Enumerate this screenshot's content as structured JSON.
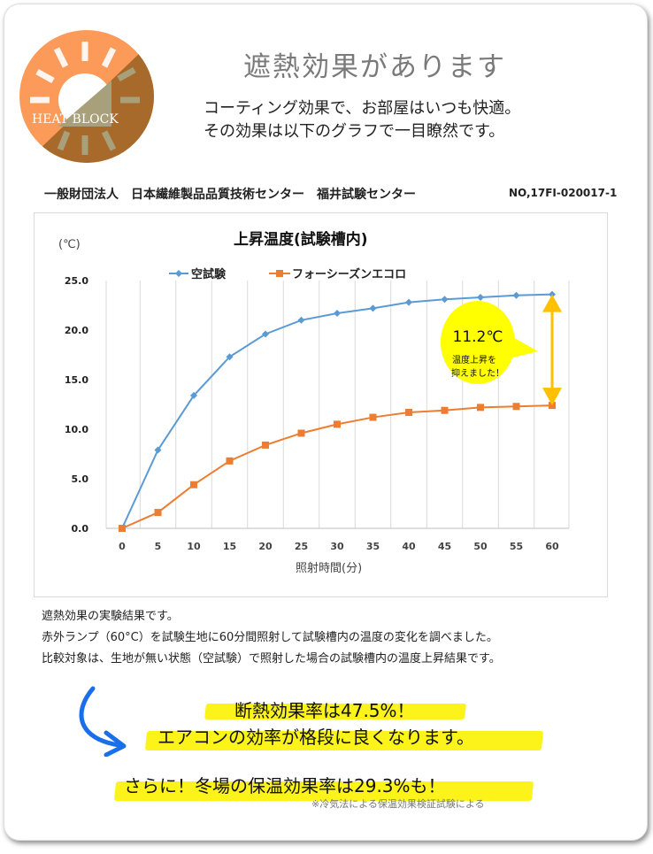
{
  "logo": {
    "text": "HEAT BLOCK",
    "colors": {
      "orange": "#fb9a59",
      "brown": "#a86a2a"
    }
  },
  "header": {
    "title": "遮熱効果があります",
    "lead": [
      "コーティング効果で、お部屋はいつも快適。",
      "その効果は以下のグラフで一目瞭然です。"
    ]
  },
  "org": {
    "name": "一般財団法人　日本繊維製品品質技術センター　福井試験センター",
    "number": "NO,17FI-020017-1"
  },
  "chart_data": {
    "type": "line",
    "title": "上昇温度(試験槽内)",
    "ylabel": "(℃)",
    "xlabel": "照射時間(分)",
    "x": [
      0,
      5,
      10,
      15,
      20,
      25,
      30,
      35,
      40,
      45,
      50,
      55,
      60
    ],
    "ylim": [
      0,
      25
    ],
    "yticks": [
      "0.0",
      "5.0",
      "10.0",
      "15.0",
      "20.0",
      "25.0"
    ],
    "xticks": [
      "0",
      "5",
      "10",
      "15",
      "20",
      "25",
      "30",
      "35",
      "40",
      "45",
      "50",
      "55",
      "60"
    ],
    "grid": "vertical",
    "legend": "top",
    "series": [
      {
        "name": "空試験",
        "color": "#5b9bd5",
        "marker": "diamond",
        "values": [
          0,
          7.9,
          13.4,
          17.3,
          19.6,
          21.0,
          21.7,
          22.2,
          22.8,
          23.1,
          23.3,
          23.5,
          23.6
        ]
      },
      {
        "name": "フォーシーズンエコロ",
        "color": "#ed7d31",
        "marker": "square",
        "values": [
          0,
          1.6,
          4.4,
          6.8,
          8.4,
          9.6,
          10.5,
          11.2,
          11.7,
          11.9,
          12.2,
          12.3,
          12.4
        ]
      }
    ],
    "annotation": {
      "value": "11.2℃",
      "line1": "温度上昇を",
      "line2": "抑えました！",
      "bubble_color": "#ffff00",
      "arrow_color": "#ffc000"
    }
  },
  "notes": [
    "遮熱効果の実験結果です。",
    "赤外ランプ（60°C）を試験生地に60分間照射して試験槽内の温度の変化を調べました。",
    "比較対象は、生地が無い状態（空試験）で照射した場合の試験槽内の温度上昇結果です。"
  ],
  "highlights": {
    "line1": "断熱効果率は47.5%！",
    "line2": "エアコンの効率が格段に良くなります。",
    "line3": "さらに！冬場の保温効果率は29.3%も！",
    "footnote": "※冷気法による保温効果検証試験による",
    "highlight_color": "#fbf31a",
    "arrow_color": "#1a6fe8"
  }
}
